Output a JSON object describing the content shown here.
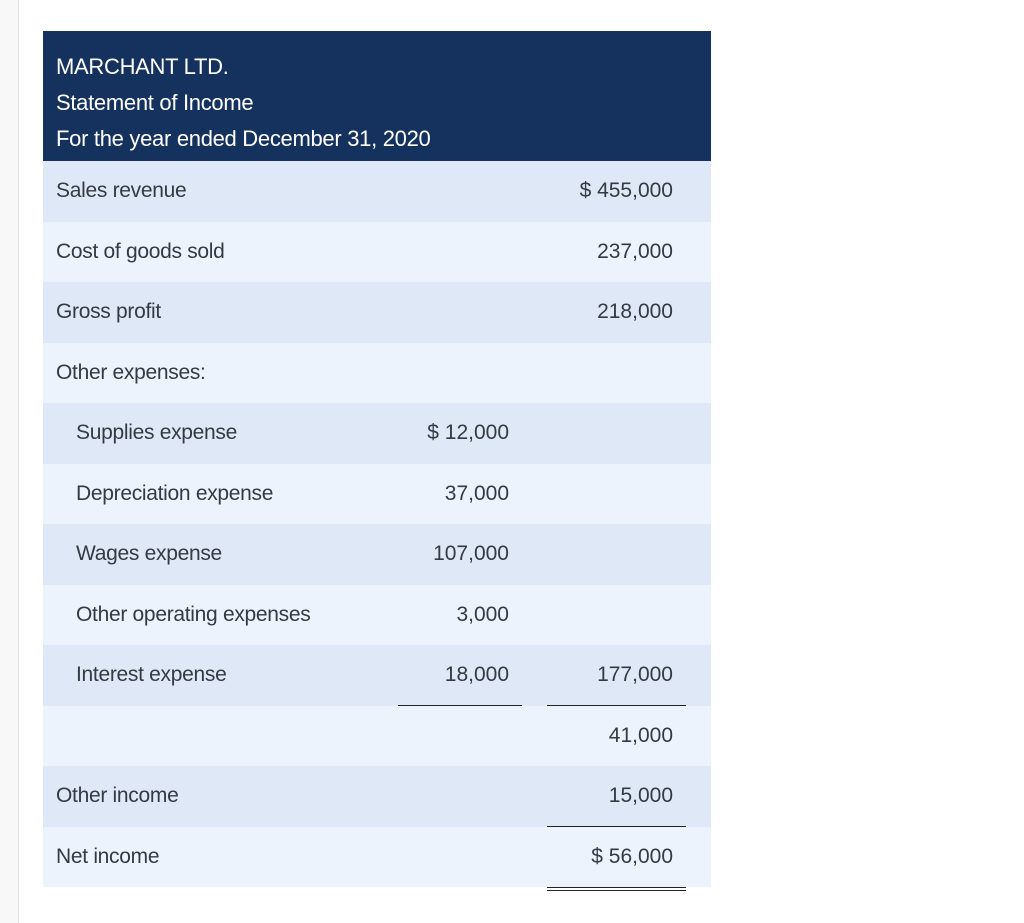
{
  "header": {
    "company": "MARCHANT LTD.",
    "statement": "Statement of Income",
    "period": "For the year ended December 31, 2020"
  },
  "colors": {
    "header_bg": "#15325f",
    "row_odd": "#dfe8f6",
    "row_even": "#edf3fd",
    "text": "#333a42"
  },
  "rows": [
    {
      "label": "Sales revenue",
      "mid": "",
      "right": "$ 455,000"
    },
    {
      "label": "Cost of goods sold",
      "mid": "",
      "right": "237,000"
    },
    {
      "label": "Gross profit",
      "mid": "",
      "right": "218,000"
    },
    {
      "label": "Other expenses:",
      "mid": "",
      "right": ""
    },
    {
      "label": "Supplies expense",
      "mid": "$ 12,000",
      "right": ""
    },
    {
      "label": "Depreciation expense",
      "mid": "37,000",
      "right": ""
    },
    {
      "label": "Wages expense",
      "mid": "107,000",
      "right": ""
    },
    {
      "label": "Other operating expenses",
      "mid": "3,000",
      "right": ""
    },
    {
      "label": "Interest expense",
      "mid": "18,000",
      "right": "177,000"
    },
    {
      "label": "",
      "mid": "",
      "right": "41,000"
    },
    {
      "label": "Other income",
      "mid": "",
      "right": "15,000"
    },
    {
      "label": "Net income",
      "mid": "",
      "right": "$ 56,000"
    }
  ]
}
